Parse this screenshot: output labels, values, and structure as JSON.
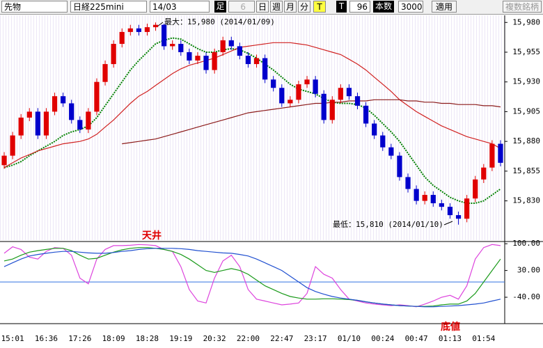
{
  "toolbar": {
    "market": "先物",
    "symbol": "日経225mini",
    "contract": "14/03",
    "bar_label": "足",
    "bar_minutes": "6",
    "day": "日",
    "week": "週",
    "month": "月",
    "minute": "分",
    "tick": "T",
    "t_label": "T",
    "t_count": "96",
    "count_label": "本数",
    "count": "3000",
    "apply": "適用",
    "multi": "複数銘柄"
  },
  "chart_data": [
    {
      "type": "candlestick",
      "annotations": [
        "最大：15,980 (2014/01/09)",
        "最低：15,810 (2014/01/10)"
      ],
      "open": [
        15860,
        15868,
        15885,
        15900,
        15905,
        15885,
        15905,
        15918,
        15912,
        15898,
        15890,
        15905,
        15930,
        15945,
        15962,
        15972,
        15975,
        15972,
        15976,
        15978,
        15960,
        15962,
        15955,
        15948,
        15952,
        15940,
        15955,
        15965,
        15960,
        15952,
        15945,
        15950,
        15932,
        15925,
        15912,
        15915,
        15928,
        15932,
        15920,
        15898,
        15915,
        15925,
        15918,
        15910,
        15895,
        15885,
        15875,
        15868,
        15850,
        15840,
        15830,
        15835,
        15828,
        15825,
        15818,
        15815,
        15832,
        15848,
        15858,
        15878
      ],
      "high": [
        15871,
        15888,
        15903,
        15908,
        15908,
        15908,
        15921,
        15921,
        15915,
        15901,
        15908,
        15933,
        15948,
        15965,
        15975,
        15978,
        15978,
        15979,
        15980,
        15979,
        15965,
        15965,
        15958,
        15955,
        15955,
        15958,
        15968,
        15968,
        15963,
        15955,
        15953,
        15953,
        15935,
        15928,
        15918,
        15931,
        15935,
        15935,
        15923,
        15918,
        15928,
        15928,
        15921,
        15913,
        15898,
        15888,
        15878,
        15871,
        15853,
        15843,
        15838,
        15838,
        15831,
        15828,
        15821,
        15835,
        15851,
        15861,
        15881,
        15881
      ],
      "low": [
        15857,
        15865,
        15882,
        15897,
        15882,
        15882,
        15902,
        15909,
        15895,
        15887,
        15887,
        15902,
        15927,
        15942,
        15959,
        15969,
        15969,
        15969,
        15973,
        15957,
        15957,
        15952,
        15945,
        15945,
        15937,
        15937,
        15952,
        15957,
        15949,
        15942,
        15942,
        15929,
        15922,
        15909,
        15909,
        15912,
        15925,
        15917,
        15895,
        15895,
        15912,
        15915,
        15907,
        15892,
        15882,
        15872,
        15865,
        15847,
        15837,
        15827,
        15827,
        15825,
        15822,
        15815,
        15810,
        15812,
        15829,
        15845,
        15855,
        15859
      ],
      "close": [
        15868,
        15885,
        15900,
        15905,
        15885,
        15905,
        15918,
        15912,
        15898,
        15890,
        15905,
        15930,
        15945,
        15962,
        15972,
        15975,
        15972,
        15976,
        15978,
        15960,
        15962,
        15955,
        15948,
        15952,
        15940,
        15955,
        15965,
        15960,
        15952,
        15945,
        15950,
        15932,
        15925,
        15912,
        15915,
        15928,
        15932,
        15920,
        15898,
        15915,
        15925,
        15918,
        15910,
        15895,
        15885,
        15875,
        15868,
        15850,
        15840,
        15830,
        15835,
        15828,
        15825,
        15818,
        15815,
        15832,
        15848,
        15858,
        15878,
        15862
      ],
      "up_color": "#e00000",
      "down_color": "#0000cc",
      "series": [
        {
          "color": "#008000",
          "dotted": true,
          "values": [
            15858,
            15860,
            15863,
            15868,
            15872,
            15876,
            15880,
            15885,
            15888,
            15890,
            15893,
            15900,
            15910,
            15920,
            15930,
            15940,
            15948,
            15955,
            15962,
            15965,
            15967,
            15966,
            15962,
            15958,
            15955,
            15955,
            15957,
            15958,
            15957,
            15954,
            15950,
            15945,
            15940,
            15934,
            15928,
            15924,
            15922,
            15920,
            15916,
            15913,
            15912,
            15912,
            15911,
            15908,
            15902,
            15895,
            15888,
            15880,
            15870,
            15860,
            15850,
            15843,
            15838,
            15833,
            15830,
            15828,
            15828,
            15830,
            15835,
            15840
          ]
        },
        {
          "color": "#d02020",
          "dotted": false,
          "values": [
            15858,
            15862,
            15866,
            15869,
            15872,
            15874,
            15876,
            15878,
            15879,
            15880,
            15882,
            15886,
            15892,
            15898,
            15905,
            15912,
            15918,
            15922,
            15927,
            15932,
            15937,
            15941,
            15944,
            15946,
            15948,
            15950,
            15953,
            15956,
            15959,
            15960,
            15961,
            15962,
            15963,
            15963,
            15963,
            15962,
            15961,
            15959,
            15957,
            15955,
            15953,
            15949,
            15945,
            15940,
            15934,
            15928,
            15922,
            15915,
            15910,
            15905,
            15901,
            15897,
            15893,
            15890,
            15887,
            15884,
            15882,
            15880,
            15878,
            15874
          ]
        },
        {
          "color": "#8b1a1a",
          "dotted": false,
          "values": [
            null,
            null,
            null,
            null,
            null,
            null,
            null,
            null,
            null,
            null,
            null,
            null,
            null,
            null,
            15878,
            15879,
            15880,
            15881,
            15882,
            15884,
            15886,
            15888,
            15890,
            15892,
            15894,
            15896,
            15898,
            15900,
            15902,
            15904,
            15905,
            15906,
            15907,
            15908,
            15909,
            15910,
            15911,
            15912,
            15912,
            15913,
            15913,
            15914,
            15914,
            15914,
            15915,
            15915,
            15915,
            15915,
            15914,
            15914,
            15913,
            15913,
            15912,
            15912,
            15911,
            15911,
            15911,
            15910,
            15910,
            15909
          ]
        }
      ],
      "ylim": [
        15797,
        15986
      ],
      "yticks": [
        {
          "value": 15980,
          "label": "15,980"
        },
        {
          "value": 15955,
          "label": "15,955"
        },
        {
          "value": 15930,
          "label": "15,930"
        },
        {
          "value": 15905,
          "label": "15,905"
        },
        {
          "value": 15880,
          "label": "15,880"
        },
        {
          "value": 15855,
          "label": "15,855"
        },
        {
          "value": 15830,
          "label": "15,830"
        }
      ]
    },
    {
      "type": "line",
      "annotations": [
        "天井",
        "底値"
      ],
      "categories": [
        null,
        "15:01",
        null,
        null,
        null,
        "16:36",
        null,
        null,
        null,
        "17:26",
        null,
        null,
        null,
        "18:09",
        null,
        null,
        null,
        "18:28",
        null,
        null,
        null,
        "19:19",
        null,
        null,
        null,
        "20:32",
        null,
        null,
        null,
        "22:00",
        null,
        null,
        null,
        "22:47",
        null,
        null,
        null,
        "23:17",
        null,
        null,
        null,
        "01/10",
        null,
        null,
        null,
        "00:24",
        null,
        null,
        null,
        "00:47",
        null,
        null,
        null,
        "01:13",
        null,
        null,
        null,
        "01:54",
        null,
        null
      ],
      "series": [
        {
          "color": "#dd44dd",
          "values": [
            75,
            92,
            85,
            65,
            60,
            80,
            90,
            88,
            70,
            10,
            -5,
            60,
            85,
            95,
            95,
            96,
            98,
            97,
            95,
            85,
            80,
            40,
            -20,
            -50,
            -55,
            10,
            55,
            70,
            40,
            -20,
            -45,
            -50,
            -55,
            -60,
            -58,
            -55,
            -30,
            40,
            20,
            10,
            -20,
            -45,
            -50,
            -55,
            -58,
            -60,
            -62,
            -60,
            -62,
            -65,
            -58,
            -50,
            -40,
            -35,
            -45,
            -10,
            60,
            90,
            98,
            95
          ]
        },
        {
          "color": "#1a9a1a",
          "values": [
            55,
            60,
            70,
            78,
            82,
            85,
            88,
            88,
            82,
            70,
            60,
            62,
            70,
            78,
            84,
            88,
            90,
            90,
            88,
            85,
            80,
            72,
            60,
            45,
            30,
            25,
            30,
            35,
            30,
            20,
            5,
            -10,
            -20,
            -30,
            -38,
            -42,
            -45,
            -45,
            -44,
            -44,
            -45,
            -46,
            -48,
            -52,
            -55,
            -58,
            -60,
            -62,
            -63,
            -64,
            -64,
            -63,
            -60,
            -58,
            -58,
            -50,
            -30,
            0,
            30,
            60
          ]
        },
        {
          "color": "#2050d0",
          "values": [
            40,
            50,
            60,
            68,
            72,
            75,
            78,
            80,
            80,
            78,
            76,
            75,
            75,
            77,
            80,
            82,
            85,
            87,
            88,
            88,
            88,
            87,
            85,
            82,
            80,
            78,
            76,
            75,
            72,
            68,
            60,
            50,
            40,
            30,
            15,
            0,
            -15,
            -25,
            -32,
            -38,
            -42,
            -45,
            -48,
            -52,
            -55,
            -58,
            -60,
            -62,
            -63,
            -64,
            -65,
            -65,
            -64,
            -63,
            -62,
            -60,
            -58,
            -55,
            -50,
            -45
          ]
        }
      ],
      "reference_line": 0,
      "reference_color": "#3070e0",
      "ylim": [
        -100,
        104
      ],
      "yticks": [
        {
          "value": 100,
          "label": "100.00"
        },
        {
          "value": 30,
          "label": "30.00"
        },
        {
          "value": -40,
          "label": "-40.00"
        }
      ]
    }
  ]
}
